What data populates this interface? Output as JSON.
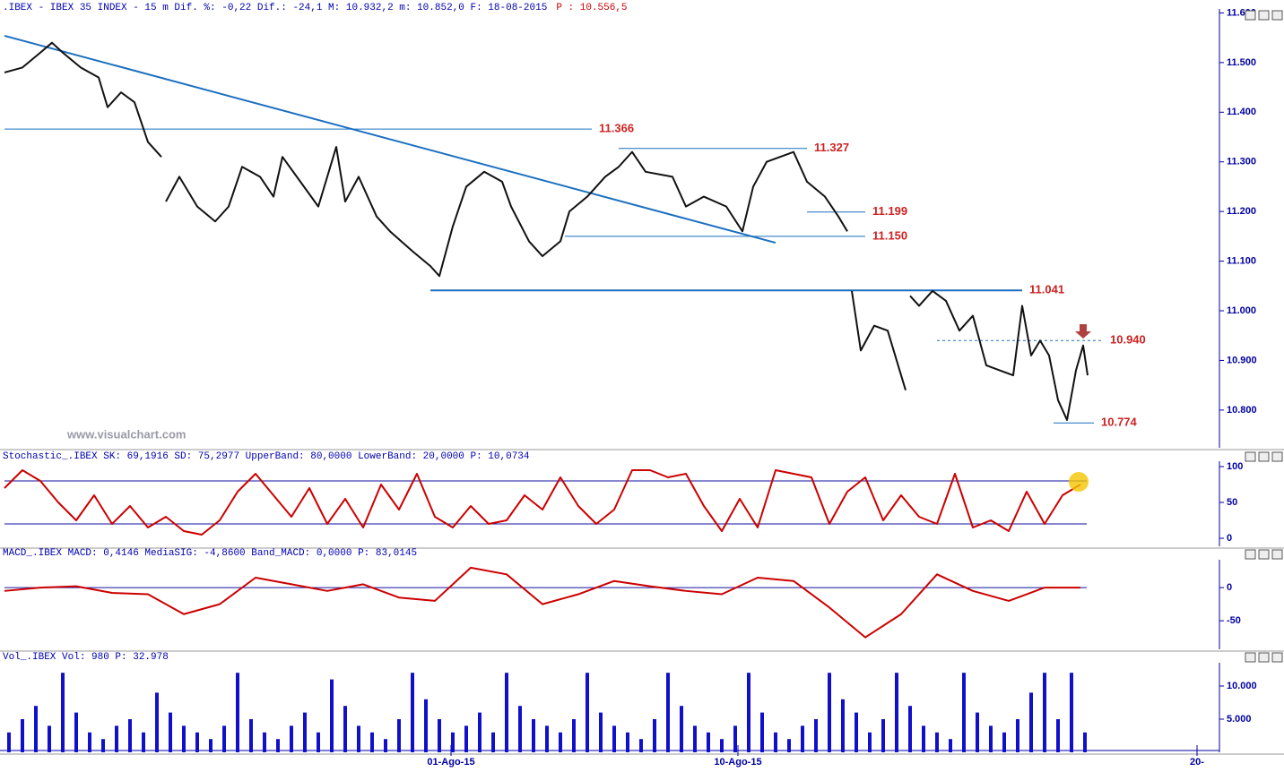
{
  "chart_data": [
    {
      "type": "line",
      "title": ".IBEX - IBEX 35 INDEX -  15 m Dif. %: -0,22 Dif.: -24,1 M: 10.932,2 m: 10.852,0 F: 18-08-2015",
      "subtitle": "P : 10.556,5",
      "watermark": "www.visualchart.com",
      "xlim": [
        0,
        136
      ],
      "ylim": [
        10.724,
        11.608
      ],
      "yticks": [
        {
          "value": 10.8,
          "label": "10.800"
        },
        {
          "value": 10.9,
          "label": "10.900"
        },
        {
          "value": 11.0,
          "label": "11.000"
        },
        {
          "value": 11.1,
          "label": "11.100"
        },
        {
          "value": 11.2,
          "label": "11.200"
        },
        {
          "value": 11.3,
          "label": "11.300"
        },
        {
          "value": 11.4,
          "label": "11.400"
        },
        {
          "value": 11.5,
          "label": "11.500"
        },
        {
          "value": 11.6,
          "label": "11.600"
        }
      ],
      "series": [
        {
          "color": "#111111",
          "x": [
            0.5,
            2.5,
            4.5,
            5.8,
            7,
            9,
            11,
            12,
            13.5,
            15,
            16.5,
            18,
            18.2,
            18.5,
            20,
            22,
            24,
            25.5,
            27,
            29,
            30.5,
            31.5,
            33.5,
            35.5,
            37.5,
            38.5,
            40,
            42,
            43.5,
            46,
            48,
            49,
            50.5,
            52,
            54,
            56,
            57,
            59,
            60.5,
            62.5,
            63.5,
            65.5,
            67.5,
            69,
            70.5,
            72,
            75,
            76.5,
            78.5,
            81,
            82.8,
            84,
            85.5,
            87,
            88.5,
            90,
            92,
            93.5,
            94.5,
            94.8,
            95,
            96,
            97.5,
            99,
            100,
            101,
            101.2,
            101.5,
            102.5,
            104,
            105.5,
            107,
            108.5,
            110,
            111.5,
            113,
            114,
            115,
            116,
            117,
            118,
            119,
            120,
            120.8,
            121.3
          ],
          "values": [
            11.48,
            11.49,
            11.52,
            11.54,
            11.52,
            11.49,
            11.47,
            11.41,
            11.44,
            11.42,
            11.34,
            11.31,
            null,
            11.22,
            11.27,
            11.21,
            11.18,
            11.21,
            11.29,
            11.27,
            11.23,
            11.31,
            11.26,
            11.21,
            11.33,
            11.22,
            11.27,
            11.19,
            11.16,
            11.12,
            11.09,
            11.07,
            11.17,
            11.25,
            11.28,
            11.26,
            11.21,
            11.14,
            11.11,
            11.14,
            11.2,
            11.23,
            11.27,
            11.29,
            11.32,
            11.28,
            11.27,
            11.21,
            11.23,
            11.21,
            11.16,
            11.25,
            11.3,
            11.31,
            11.32,
            11.26,
            11.23,
            11.19,
            11.16,
            null,
            11.04,
            10.92,
            10.97,
            10.96,
            10.9,
            10.84,
            null,
            11.03,
            11.01,
            11.04,
            11.02,
            10.96,
            10.99,
            10.89,
            10.88,
            10.87,
            11.01,
            10.91,
            10.94,
            10.91,
            10.82,
            10.78,
            10.88,
            10.93,
            10.87
          ]
        }
      ],
      "trendline": {
        "color": "#1a6fc0",
        "x": [
          0.5,
          86.5
        ],
        "values": [
          11.554,
          11.137
        ]
      },
      "levels": {
        "color": "#1a6fc0",
        "values": [
          11.366,
          11.327,
          11.199,
          11.15,
          11.041,
          10.94,
          10.774
        ],
        "value_labels": [
          "11.366",
          "11.327",
          "11.199",
          "11.150",
          "11.041",
          "10.940",
          "10.774"
        ],
        "x": [
          [
            0.5,
            66
          ],
          [
            69,
            90
          ],
          [
            90,
            96.5
          ],
          [
            63,
            96.5
          ],
          [
            48,
            114
          ],
          [
            104.5,
            123
          ],
          [
            117.5,
            122
          ]
        ]
      }
    },
    {
      "type": "line",
      "title": "Stochastic_.IBEX SK: 69,1916 SD: 75,2977 UpperBand: 80,0000 LowerBand: 20,0000 P: 10,0734",
      "xlim": [
        0,
        136
      ],
      "ylim": [
        -11.25,
        107.5
      ],
      "yticks": [
        0,
        50,
        100
      ],
      "hlines": [
        80,
        20
      ],
      "series": [
        {
          "color": "#cc0000",
          "x": [
            0.5,
            2.5,
            4.5,
            6.5,
            8.5,
            10.5,
            12.5,
            14.5,
            16.5,
            18.5,
            20.5,
            22.5,
            24.5,
            26.5,
            28.5,
            30.5,
            32.5,
            34.5,
            36.5,
            38.5,
            40.5,
            42.5,
            44.5,
            46.5,
            48.5,
            50.5,
            52.5,
            54.5,
            56.5,
            58.5,
            60.5,
            62.5,
            64.5,
            66.5,
            68.5,
            70.5,
            72.5,
            74.5,
            76.5,
            78.5,
            80.5,
            82.5,
            84.5,
            86.5,
            88.5,
            90.5,
            92.5,
            94.5,
            96.5,
            98.5,
            100.5,
            102.5,
            104.5,
            106.5,
            108.5,
            110.5,
            112.5,
            114.5,
            116.5,
            118.5,
            120.5
          ],
          "values": [
            70,
            95,
            80,
            50,
            25,
            60,
            20,
            45,
            15,
            30,
            10,
            5,
            25,
            65,
            90,
            60,
            30,
            70,
            20,
            55,
            15,
            75,
            40,
            90,
            30,
            15,
            45,
            20,
            25,
            60,
            40,
            85,
            45,
            20,
            40,
            95,
            95,
            85,
            90,
            45,
            10,
            55,
            15,
            95,
            90,
            85,
            20,
            65,
            85,
            25,
            60,
            30,
            20,
            90,
            15,
            25,
            10,
            65,
            20,
            60,
            75
          ]
        }
      ]
    },
    {
      "type": "line",
      "title": "MACD_.IBEX MACD: 0,4146 MediaSIG: -4,8600 Band_MACD: 0,0000 P: 83,0145",
      "xlim": [
        0,
        136
      ],
      "ylim": [
        -93,
        42
      ],
      "yticks": [
        -50,
        0
      ],
      "hlines": [
        0
      ],
      "series": [
        {
          "color": "#cc0000",
          "x": [
            0.5,
            4.5,
            8.5,
            12.5,
            16.5,
            20.5,
            24.5,
            28.5,
            32.5,
            36.5,
            40.5,
            44.5,
            48.5,
            52.5,
            56.5,
            60.5,
            64.5,
            68.5,
            72.5,
            76.5,
            80.5,
            84.5,
            88.5,
            92.5,
            96.5,
            100.5,
            104.5,
            108.5,
            112.5,
            116.5,
            120.5
          ],
          "values": [
            -5,
            0,
            2,
            -8,
            -10,
            -40,
            -25,
            15,
            5,
            -5,
            5,
            -15,
            -20,
            30,
            20,
            -25,
            -10,
            10,
            2,
            -5,
            -10,
            15,
            10,
            -30,
            -75,
            -40,
            20,
            -5,
            -20,
            0,
            0
          ]
        }
      ]
    },
    {
      "type": "bar",
      "title": "Vol_.IBEX Vol: 980 P: 32.978",
      "xlim": [
        0,
        136
      ],
      "ylim": [
        0,
        13514
      ],
      "yticks": [
        {
          "value": 5000,
          "label": "5.000"
        },
        {
          "value": 10000,
          "label": "10.000"
        }
      ],
      "xticks": [
        {
          "value": 50.3,
          "label": "01-Ago-15"
        },
        {
          "value": 82.3,
          "label": "10-Ago-15"
        },
        {
          "value": 133.5,
          "label": "20-"
        }
      ],
      "series": [
        {
          "color": "#1010cc",
          "x": [
            1,
            2.5,
            4,
            5.5,
            7,
            8.5,
            10,
            11.5,
            13,
            14.5,
            16,
            17.5,
            19,
            20.5,
            22,
            23.5,
            25,
            26.5,
            28,
            29.5,
            31,
            32.5,
            34,
            35.5,
            37,
            38.5,
            40,
            41.5,
            43,
            44.5,
            46,
            47.5,
            49,
            50.5,
            52,
            53.5,
            55,
            56.5,
            58,
            59.5,
            61,
            62.5,
            64,
            65.5,
            67,
            68.5,
            70,
            71.5,
            73,
            74.5,
            76,
            77.5,
            79,
            80.5,
            82,
            83.5,
            85,
            86.5,
            88,
            89.5,
            91,
            92.5,
            94,
            95.5,
            97,
            98.5,
            100,
            101.5,
            103,
            104.5,
            106,
            107.5,
            109,
            110.5,
            112,
            113.5,
            115,
            116.5,
            118,
            119.5,
            121
          ],
          "values": [
            3000,
            5000,
            7000,
            4000,
            12000,
            6000,
            3000,
            2000,
            4000,
            5000,
            3000,
            9000,
            6000,
            4000,
            3000,
            2000,
            4000,
            12000,
            5000,
            3000,
            2000,
            4000,
            6000,
            3000,
            11000,
            7000,
            4000,
            3000,
            2000,
            5000,
            12000,
            8000,
            5000,
            3000,
            4000,
            6000,
            3000,
            12000,
            7000,
            5000,
            4000,
            3000,
            5000,
            12000,
            6000,
            4000,
            3000,
            2000,
            5000,
            12000,
            7000,
            4000,
            3000,
            2000,
            4000,
            12000,
            6000,
            3000,
            2000,
            4000,
            5000,
            12000,
            8000,
            6000,
            3000,
            5000,
            12000,
            7000,
            4000,
            3000,
            2000,
            12000,
            6000,
            4000,
            3000,
            5000,
            9000,
            12000,
            5000,
            12000,
            3000
          ]
        }
      ]
    }
  ]
}
